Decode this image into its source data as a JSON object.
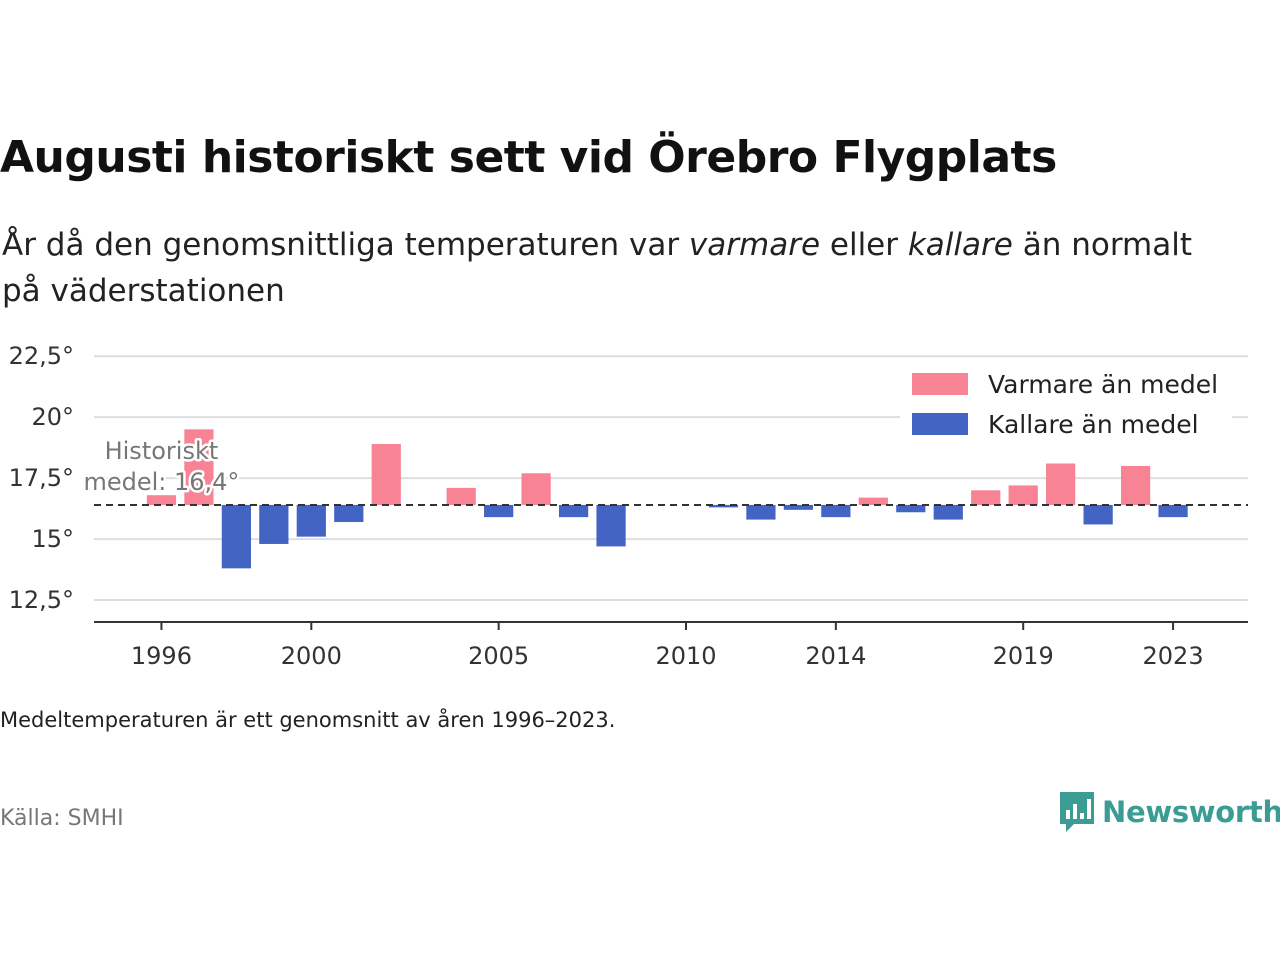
{
  "title": "Augusti historiskt sett vid Örebro Flygplats",
  "subtitle": {
    "part1": "År då den genomsnittliga temperaturen var ",
    "warm": "varmare",
    "part2": " eller ",
    "cold": "kallare",
    "part3": " än normalt på väderstationen"
  },
  "note": "Medeltemperaturen är ett genomsnitt av åren 1996–2023.",
  "source": "Källa: SMHI",
  "brand": "Newsworthy",
  "colors": {
    "warmer": "#f78395",
    "colder": "#4364c3",
    "brand": "#3a9c93"
  },
  "chart_data": {
    "type": "bar",
    "baseline": 16.4,
    "mean_label_line1": "Historiskt",
    "mean_label_line2": "medel: 16,4°",
    "ylim": [
      11.6,
      23.0
    ],
    "yticks": [
      12.5,
      15,
      17.5,
      20,
      22.5
    ],
    "ytick_labels": [
      "12,5°",
      "15°",
      "17,5°",
      "20°",
      "22,5°"
    ],
    "xticks": [
      1996,
      2000,
      2005,
      2010,
      2014,
      2019,
      2023
    ],
    "xlim": [
      1994.2,
      2025
    ],
    "grid": true,
    "legend": [
      {
        "label": "Varmare än medel",
        "color": "#f78395"
      },
      {
        "label": "Kallare än medel",
        "color": "#4364c3"
      }
    ],
    "legend_position": "top-right",
    "x": [
      1996,
      1997,
      1998,
      1999,
      2000,
      2001,
      2002,
      2004,
      2005,
      2006,
      2007,
      2008,
      2011,
      2012,
      2013,
      2014,
      2015,
      2016,
      2017,
      2018,
      2019,
      2020,
      2021,
      2022,
      2023
    ],
    "values": [
      16.8,
      19.5,
      13.8,
      14.8,
      15.1,
      15.7,
      18.9,
      17.1,
      15.9,
      17.7,
      15.9,
      14.7,
      16.3,
      15.8,
      16.2,
      15.9,
      16.7,
      16.1,
      15.8,
      17.0,
      17.2,
      18.1,
      15.6,
      18.0,
      15.9
    ]
  }
}
